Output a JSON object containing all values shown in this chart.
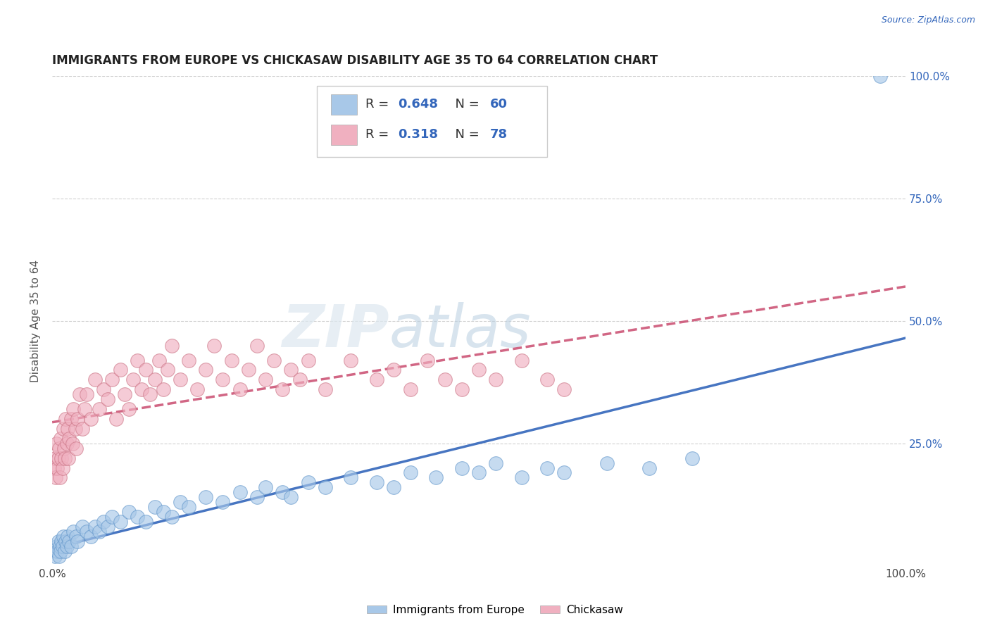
{
  "title": "IMMIGRANTS FROM EUROPE VS CHICKASAW DISABILITY AGE 35 TO 64 CORRELATION CHART",
  "source": "Source: ZipAtlas.com",
  "ylabel": "Disability Age 35 to 64",
  "xlim": [
    0,
    100
  ],
  "ylim": [
    0,
    100
  ],
  "watermark_zip": "ZIP",
  "watermark_atlas": "atlas",
  "grid_color": "#cccccc",
  "background_color": "#ffffff",
  "ytick_positions": [
    25,
    50,
    75,
    100
  ],
  "ytick_labels": [
    "25.0%",
    "50.0%",
    "75.0%",
    "100.0%"
  ],
  "xtick_positions": [
    0,
    100
  ],
  "xtick_labels": [
    "0.0%",
    "100.0%"
  ],
  "series": [
    {
      "name": "Immigrants from Europe",
      "R": 0.648,
      "N": 60,
      "color": "#a8c8e8",
      "edge_color": "#6699cc",
      "line_color": "#3366bb",
      "line_style": "solid",
      "x": [
        0.3,
        0.5,
        0.6,
        0.7,
        0.8,
        0.9,
        1.0,
        1.1,
        1.2,
        1.3,
        1.5,
        1.6,
        1.7,
        1.8,
        2.0,
        2.2,
        2.5,
        2.8,
        3.0,
        3.5,
        4.0,
        4.5,
        5.0,
        5.5,
        6.0,
        6.5,
        7.0,
        8.0,
        9.0,
        10.0,
        11.0,
        12.0,
        13.0,
        14.0,
        15.0,
        16.0,
        18.0,
        20.0,
        22.0,
        24.0,
        25.0,
        27.0,
        28.0,
        30.0,
        32.0,
        35.0,
        38.0,
        40.0,
        42.0,
        45.0,
        48.0,
        50.0,
        52.0,
        55.0,
        58.0,
        60.0,
        65.0,
        70.0,
        75.0,
        97.0
      ],
      "y": [
        2,
        4,
        3,
        5,
        2,
        4,
        3,
        5,
        4,
        6,
        3,
        5,
        4,
        6,
        5,
        4,
        7,
        6,
        5,
        8,
        7,
        6,
        8,
        7,
        9,
        8,
        10,
        9,
        11,
        10,
        9,
        12,
        11,
        10,
        13,
        12,
        14,
        13,
        15,
        14,
        16,
        15,
        14,
        17,
        16,
        18,
        17,
        16,
        19,
        18,
        20,
        19,
        21,
        18,
        20,
        19,
        21,
        20,
        22,
        100
      ]
    },
    {
      "name": "Chickasaw",
      "R": 0.318,
      "N": 78,
      "color": "#f0b0c0",
      "edge_color": "#cc7788",
      "line_color": "#cc5577",
      "line_style": "dashed",
      "x": [
        0.2,
        0.3,
        0.4,
        0.5,
        0.6,
        0.7,
        0.8,
        0.9,
        1.0,
        1.1,
        1.2,
        1.3,
        1.4,
        1.5,
        1.6,
        1.7,
        1.8,
        1.9,
        2.0,
        2.2,
        2.4,
        2.5,
        2.7,
        2.8,
        3.0,
        3.2,
        3.5,
        3.8,
        4.0,
        4.5,
        5.0,
        5.5,
        6.0,
        6.5,
        7.0,
        7.5,
        8.0,
        8.5,
        9.0,
        9.5,
        10.0,
        10.5,
        11.0,
        11.5,
        12.0,
        12.5,
        13.0,
        13.5,
        14.0,
        15.0,
        16.0,
        17.0,
        18.0,
        19.0,
        20.0,
        21.0,
        22.0,
        23.0,
        24.0,
        25.0,
        26.0,
        27.0,
        28.0,
        29.0,
        30.0,
        32.0,
        35.0,
        38.0,
        40.0,
        42.0,
        44.0,
        46.0,
        48.0,
        50.0,
        52.0,
        55.0,
        58.0,
        60.0
      ],
      "y": [
        20,
        22,
        18,
        25,
        20,
        22,
        24,
        18,
        26,
        22,
        20,
        28,
        24,
        22,
        30,
        25,
        28,
        22,
        26,
        30,
        25,
        32,
        28,
        24,
        30,
        35,
        28,
        32,
        35,
        30,
        38,
        32,
        36,
        34,
        38,
        30,
        40,
        35,
        32,
        38,
        42,
        36,
        40,
        35,
        38,
        42,
        36,
        40,
        45,
        38,
        42,
        36,
        40,
        45,
        38,
        42,
        36,
        40,
        45,
        38,
        42,
        36,
        40,
        38,
        42,
        36,
        42,
        38,
        40,
        36,
        42,
        38,
        36,
        40,
        38,
        42,
        38,
        36
      ]
    }
  ]
}
